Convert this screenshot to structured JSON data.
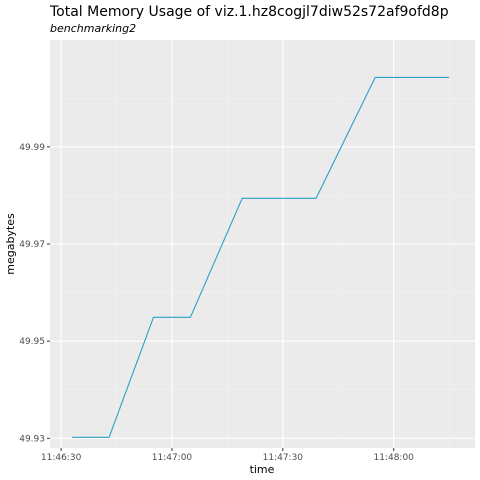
{
  "chart_data": {
    "type": "line",
    "title": "Total Memory Usage of viz.1.hz8cogjl7diw52s72af9ofd8p",
    "subtitle": "benchmarking2",
    "xlabel": "time",
    "ylabel": "megabytes",
    "x_ticks": [
      "11:46:30",
      "11:47:00",
      "11:47:30",
      "11:48:00"
    ],
    "y_ticks": [
      "49.93",
      "49.95",
      "49.97",
      "49.99"
    ],
    "xlim": [
      "11:46:27",
      "11:48:22"
    ],
    "ylim": [
      49.928,
      50.012
    ],
    "grid": true,
    "series": [
      {
        "color": "#2aa1c8",
        "x": [
          "11:46:33",
          "11:46:43",
          "11:46:55",
          "11:47:05",
          "11:47:19",
          "11:47:39",
          "11:47:55",
          "11:48:15"
        ],
        "values": [
          49.9302,
          49.9302,
          49.9549,
          49.9549,
          49.9794,
          49.9794,
          50.0043,
          50.0043
        ]
      }
    ]
  }
}
